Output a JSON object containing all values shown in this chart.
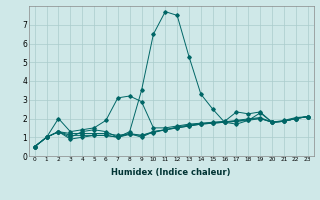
{
  "xlabel": "Humidex (Indice chaleur)",
  "ylabel": "",
  "background_color": "#cfe8e8",
  "grid_color": "#aacccc",
  "line_color": "#006666",
  "xlim": [
    -0.5,
    23.5
  ],
  "ylim": [
    0,
    8
  ],
  "xticks": [
    0,
    1,
    2,
    3,
    4,
    5,
    6,
    7,
    8,
    9,
    10,
    11,
    12,
    13,
    14,
    15,
    16,
    17,
    18,
    19,
    20,
    21,
    22,
    23
  ],
  "yticks": [
    0,
    1,
    2,
    3,
    4,
    5,
    6,
    7
  ],
  "series": [
    {
      "x": [
        0,
        1,
        2,
        3,
        4,
        5,
        6,
        7,
        8,
        9,
        10,
        11,
        12,
        13,
        14,
        15,
        16,
        17,
        18,
        19,
        20,
        21,
        22,
        23
      ],
      "y": [
        0.5,
        1.0,
        1.3,
        1.0,
        1.3,
        1.4,
        1.3,
        1.0,
        1.3,
        3.5,
        6.5,
        7.7,
        7.5,
        5.3,
        3.3,
        2.5,
        1.8,
        1.7,
        1.9,
        2.3,
        1.8,
        1.9,
        2.05,
        2.1
      ]
    },
    {
      "x": [
        0,
        1,
        2,
        3,
        4,
        5,
        6,
        7,
        8,
        9,
        10,
        11,
        12,
        13,
        14,
        15,
        16,
        17,
        18,
        19,
        20,
        21,
        22,
        23
      ],
      "y": [
        0.5,
        1.0,
        2.0,
        1.3,
        1.4,
        1.5,
        1.9,
        3.1,
        3.2,
        2.9,
        1.5,
        1.5,
        1.6,
        1.7,
        1.75,
        1.8,
        1.85,
        2.35,
        2.25,
        2.35,
        1.8,
        1.85,
        2.0,
        2.1
      ]
    },
    {
      "x": [
        0,
        1,
        2,
        3,
        4,
        5,
        6,
        7,
        8,
        9,
        10,
        11,
        12,
        13,
        14,
        15,
        16,
        17,
        18,
        19,
        20,
        21,
        22,
        23
      ],
      "y": [
        0.5,
        1.0,
        1.3,
        0.9,
        1.0,
        1.1,
        1.1,
        1.0,
        1.2,
        1.0,
        1.3,
        1.4,
        1.5,
        1.6,
        1.7,
        1.75,
        1.8,
        1.85,
        1.9,
        2.0,
        1.8,
        1.85,
        2.0,
        2.1
      ]
    },
    {
      "x": [
        0,
        1,
        2,
        3,
        4,
        5,
        6,
        7,
        8,
        9,
        10,
        11,
        12,
        13,
        14,
        15,
        16,
        17,
        18,
        19,
        20,
        21,
        22,
        23
      ],
      "y": [
        0.5,
        1.0,
        1.3,
        1.1,
        1.1,
        1.1,
        1.1,
        1.0,
        1.15,
        1.1,
        1.25,
        1.4,
        1.5,
        1.6,
        1.7,
        1.75,
        1.8,
        1.85,
        1.95,
        2.0,
        1.8,
        1.85,
        2.0,
        2.1
      ]
    },
    {
      "x": [
        0,
        1,
        2,
        3,
        4,
        5,
        6,
        7,
        8,
        9,
        10,
        11,
        12,
        13,
        14,
        15,
        16,
        17,
        18,
        19,
        20,
        21,
        22,
        23
      ],
      "y": [
        0.5,
        1.0,
        1.3,
        1.2,
        1.2,
        1.2,
        1.2,
        1.1,
        1.2,
        1.1,
        1.3,
        1.4,
        1.55,
        1.65,
        1.72,
        1.78,
        1.82,
        1.9,
        1.98,
        2.05,
        1.8,
        1.85,
        2.0,
        2.1
      ]
    }
  ]
}
